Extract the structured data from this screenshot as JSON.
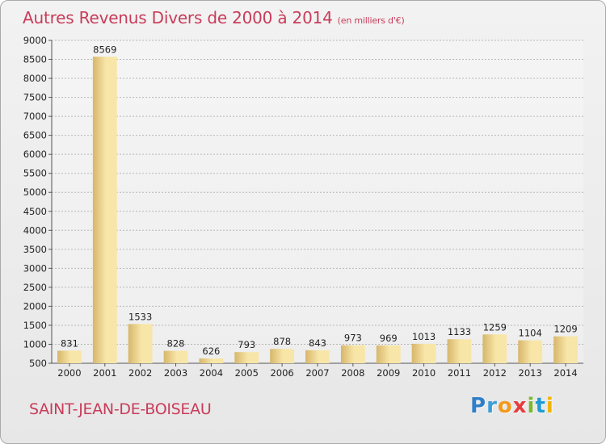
{
  "title": {
    "main": "Autres Revenus Divers de 2000 à 2014",
    "unit": "(en milliers d'€)"
  },
  "commune": "SAINT-JEAN-DE-BOISEAU",
  "logo": {
    "text": "Proxiti"
  },
  "colors": {
    "title": "#c83c5a",
    "bar_light": "#f8e6a8",
    "bar_dark": "#d7b66a"
  },
  "chart_data": {
    "type": "bar",
    "title": "Autres Revenus Divers de 2000 à 2014",
    "subtitle": "(en milliers d'€)",
    "categories": [
      "2000",
      "2001",
      "2002",
      "2003",
      "2004",
      "2005",
      "2006",
      "2007",
      "2008",
      "2009",
      "2010",
      "2011",
      "2012",
      "2013",
      "2014"
    ],
    "values": [
      831,
      8569,
      1533,
      828,
      626,
      793,
      878,
      843,
      973,
      969,
      1013,
      1133,
      1259,
      1104,
      1209
    ],
    "ylim": [
      500,
      9000
    ],
    "yticks": [
      500,
      1000,
      1500,
      2000,
      2500,
      3000,
      3500,
      4000,
      4500,
      5000,
      5500,
      6000,
      6500,
      7000,
      7500,
      8000,
      8500,
      9000
    ],
    "grid": true,
    "xlabel": "",
    "ylabel": ""
  }
}
